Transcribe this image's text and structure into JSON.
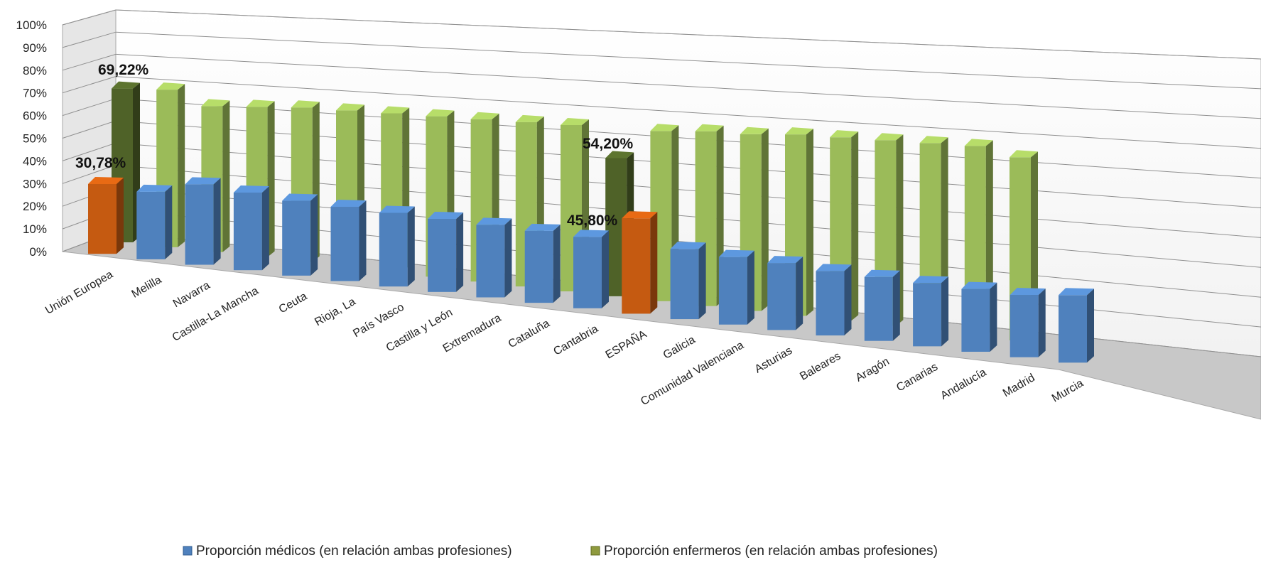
{
  "chart_data": {
    "type": "bar",
    "categories": [
      "Unión Europea",
      "Melilla",
      "Navarra",
      "Castilla-La Mancha",
      "Ceuta",
      "Rioja, La",
      "País Vasco",
      "Castilla y León",
      "Extremadura",
      "Cataluña",
      "Cantabria",
      "ESPAÑA",
      "Galicia",
      "Comunidad Valenciana",
      "Asturias",
      "Baleares",
      "Aragón",
      "Canarias",
      "Andalucía",
      "Madrid",
      "Murcia"
    ],
    "series": [
      {
        "name": "Proporción médicos (en relación ambas profesiones)",
        "values": [
          30.78,
          30,
          36,
          35,
          34,
          34,
          34,
          34,
          34,
          34,
          34,
          45.8,
          34,
          33,
          33,
          32,
          32,
          32,
          32,
          32,
          35
        ]
      },
      {
        "name": "Proporción enfermeros (en relación ambas profesiones)",
        "values": [
          69.22,
          70,
          64,
          65,
          66,
          66,
          66,
          66,
          66,
          66,
          66,
          54.2,
          66,
          67,
          67,
          68,
          68,
          68,
          68,
          68,
          65
        ]
      }
    ],
    "ylim": [
      0,
      100
    ],
    "yticks": [
      "0%",
      "10%",
      "20%",
      "30%",
      "40%",
      "50%",
      "60%",
      "70%",
      "80%",
      "90%",
      "100%"
    ],
    "data_labels": [
      "69,22%",
      "30,78%",
      "54,20%",
      "45,80%"
    ],
    "highlight_categories": [
      "Unión Europea",
      "ESPAÑA"
    ],
    "colors": {
      "medicos": "#4f81bd",
      "enfermeros": "#9bbb59",
      "highlight_medicos": "#c55a11",
      "highlight_enfermeros": "#4f6228"
    },
    "grid": true,
    "legend_position": "bottom"
  }
}
